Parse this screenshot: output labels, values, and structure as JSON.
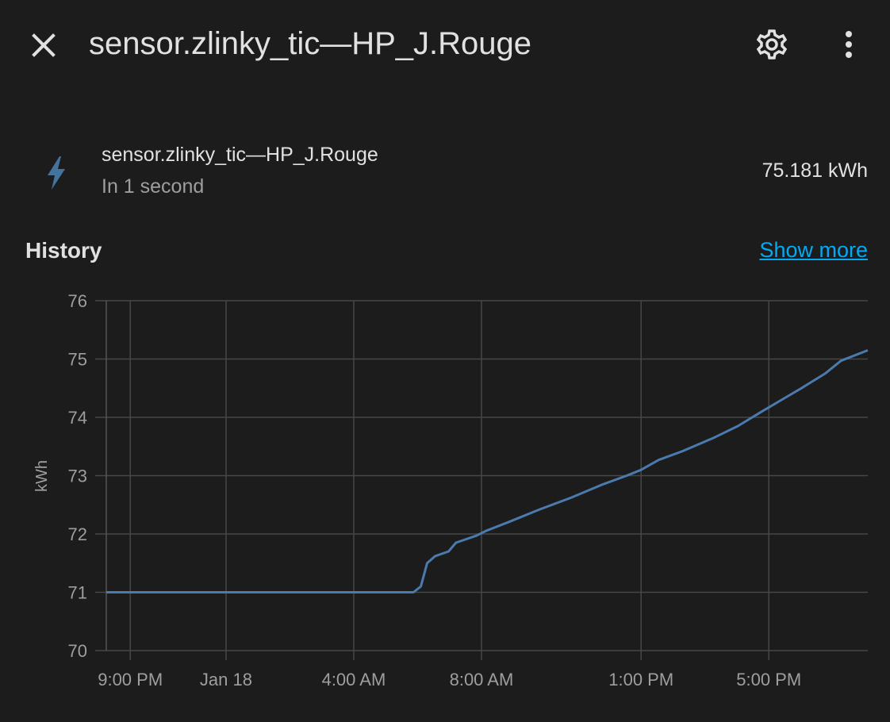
{
  "header": {
    "title": "sensor.zlinky_tic—HP_J.Rouge"
  },
  "entity": {
    "name": "sensor.zlinky_tic—HP_J.Rouge",
    "time": "In 1 second",
    "value": "75.181 kWh"
  },
  "history": {
    "title": "History",
    "link": "Show more"
  },
  "chart_data": {
    "type": "line",
    "ylabel": "kWh",
    "x": [
      -3.75,
      5.87,
      6.1,
      6.3,
      6.55,
      6.97,
      7.2,
      7.84,
      8.13,
      8.83,
      9.82,
      10.8,
      11.8,
      12.55,
      13.0,
      13.55,
      14.3,
      15.28,
      16.03,
      16.78,
      17.4,
      18.02,
      18.76,
      19.26,
      20.1
    ],
    "series": [
      {
        "name": "sensor.zlinky_tic—HP_J.Rouge",
        "color": "#4a7aae",
        "values": [
          71,
          71,
          71.1,
          71.5,
          71.62,
          71.7,
          71.85,
          71.97,
          72.05,
          72.2,
          72.42,
          72.62,
          72.85,
          73.0,
          73.1,
          73.27,
          73.42,
          73.65,
          73.85,
          74.1,
          74.3,
          74.5,
          74.75,
          74.97,
          75.15
        ]
      }
    ],
    "xlim": [
      -3.75,
      20.1
    ],
    "xticks": [
      {
        "value": -3,
        "label": "9:00 PM"
      },
      {
        "value": 0,
        "label": "Jan 18"
      },
      {
        "value": 4,
        "label": "4:00 AM"
      },
      {
        "value": 8,
        "label": "8:00 AM"
      },
      {
        "value": 13,
        "label": "1:00 PM"
      },
      {
        "value": 17,
        "label": "5:00 PM"
      }
    ],
    "ylim": [
      70,
      76
    ],
    "yticks": [
      70,
      71,
      72,
      73,
      74,
      75,
      76
    ],
    "grid": true
  }
}
